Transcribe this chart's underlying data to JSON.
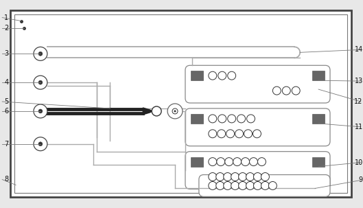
{
  "fig_width": 5.29,
  "fig_height": 3.03,
  "dpi": 100,
  "bg_color": "#e8e8e8",
  "device_bg": "#ffffff",
  "ch_color": "#aaaaaa",
  "ch_lw": 1.0,
  "dark_block_color": "#666666",
  "port_fc": "#ffffff",
  "port_ec": "#444444",
  "label_fs": 7,
  "ann_color": "#777777",
  "ann_lw": 0.6,
  "border_ec": "#444444",
  "border_lw": 1.5,
  "inner_border_ec": "#666666",
  "inner_border_lw": 0.8
}
